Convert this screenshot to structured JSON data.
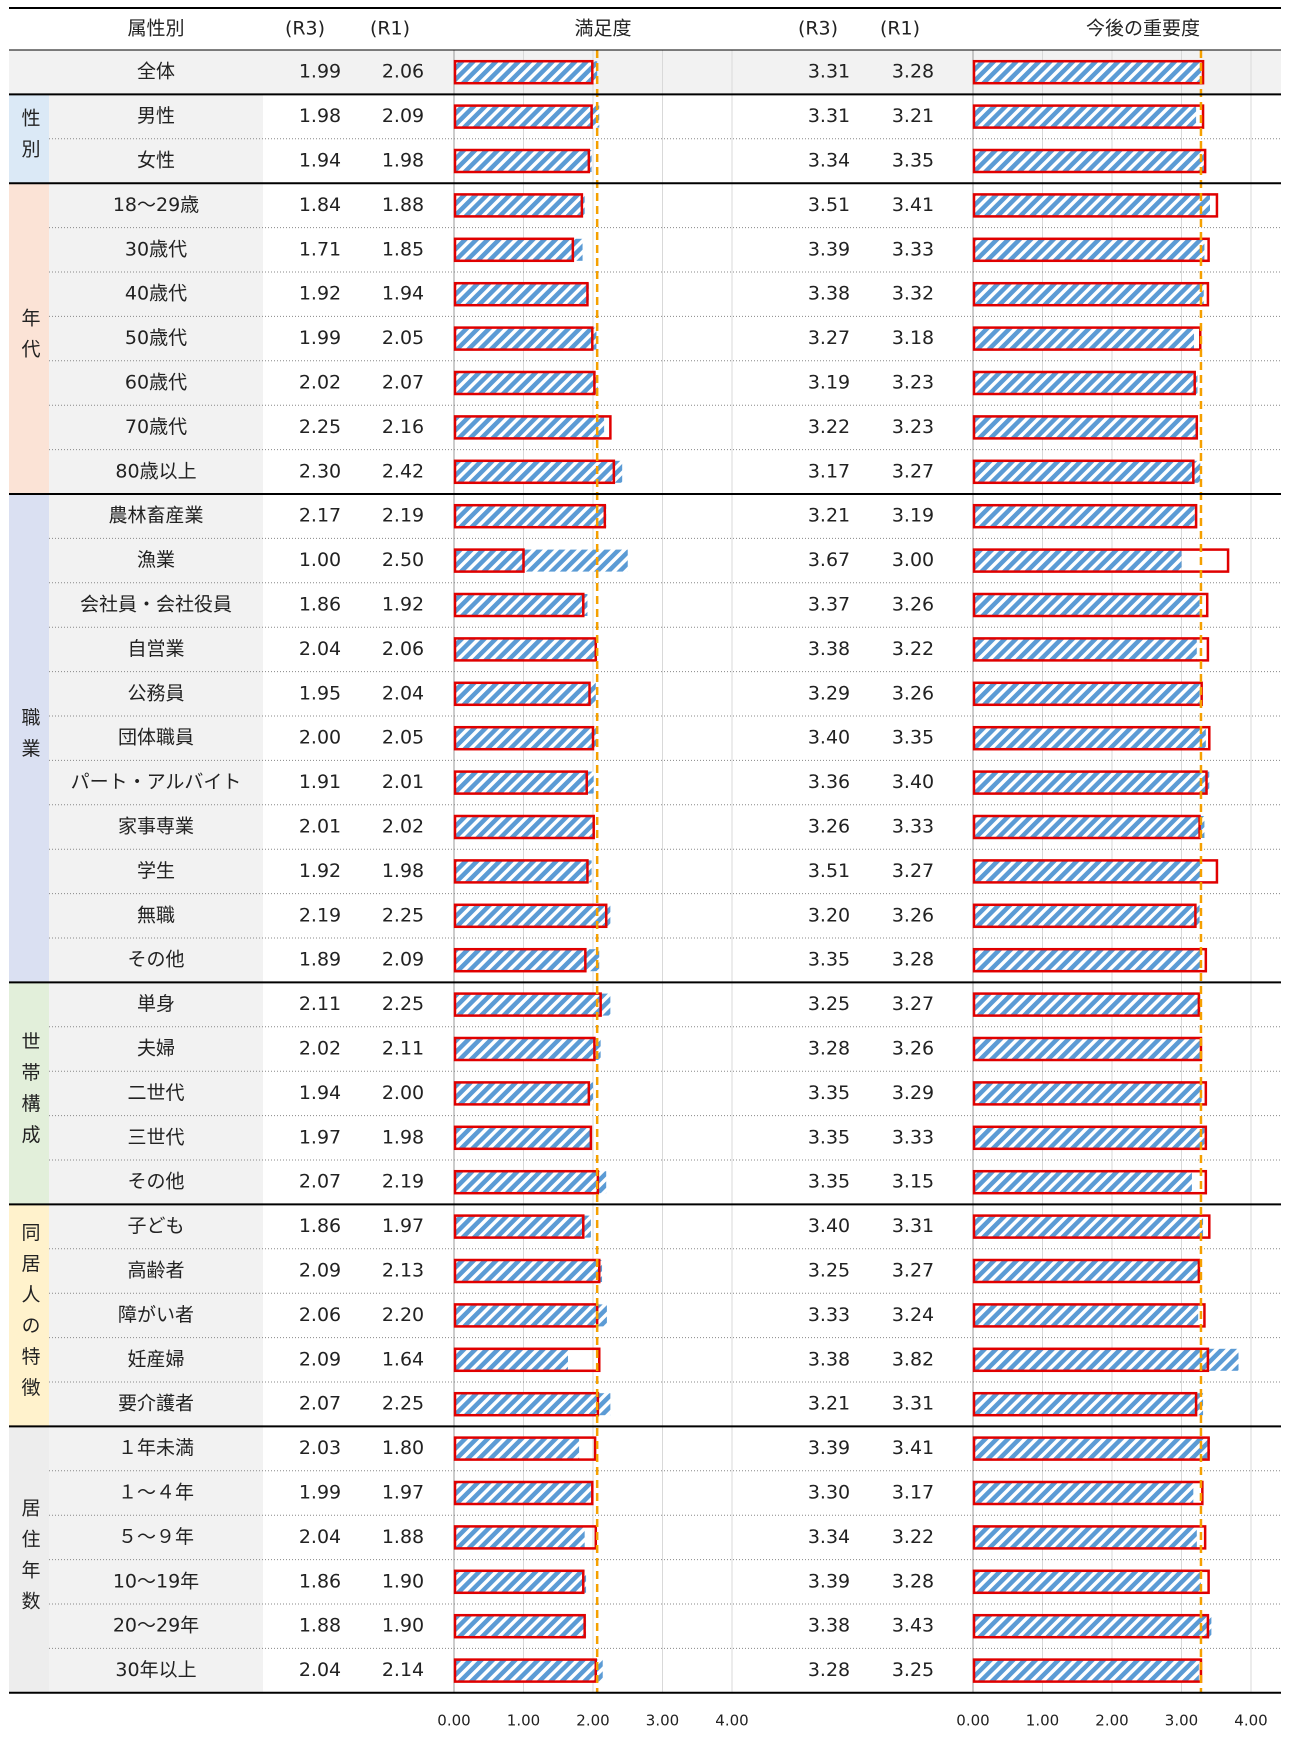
{
  "header": {
    "attribute": "属性別",
    "r3": "(R3)",
    "r1": "(R1)",
    "satisfaction": "満足度",
    "importance": "今後の重要度"
  },
  "axis": {
    "xlim": [
      0,
      4
    ],
    "xticks": [
      {
        "value": 0,
        "label": "0.00"
      },
      {
        "value": 1,
        "label": "1.00"
      },
      {
        "value": 2,
        "label": "2.00"
      },
      {
        "value": 3,
        "label": "3.00"
      },
      {
        "value": 4,
        "label": "4.00"
      }
    ],
    "r3_color": "#e00000",
    "r1_color": "#5b9bd5",
    "reference_color": "#f5a000"
  },
  "overall": {
    "rows": [
      [
        "全体",
        "1.99",
        "2.06",
        "3.31",
        "3.28"
      ]
    ]
  },
  "groups": [
    {
      "name": "性別",
      "color": "#dbe9f6",
      "rows": [
        [
          "男性",
          "1.98",
          "2.09",
          "3.31",
          "3.21"
        ],
        [
          "女性",
          "1.94",
          "1.98",
          "3.34",
          "3.35"
        ]
      ]
    },
    {
      "name": "年代",
      "color": "#fbe3d6",
      "rows": [
        [
          "18～29歳",
          "1.84",
          "1.88",
          "3.51",
          "3.41"
        ],
        [
          "30歳代",
          "1.71",
          "1.85",
          "3.39",
          "3.33"
        ],
        [
          "40歳代",
          "1.92",
          "1.94",
          "3.38",
          "3.32"
        ],
        [
          "50歳代",
          "1.99",
          "2.05",
          "3.27",
          "3.18"
        ],
        [
          "60歳代",
          "2.02",
          "2.07",
          "3.19",
          "3.23"
        ],
        [
          "70歳代",
          "2.25",
          "2.16",
          "3.22",
          "3.23"
        ],
        [
          "80歳以上",
          "2.30",
          "2.42",
          "3.17",
          "3.27"
        ]
      ]
    },
    {
      "name": "職業",
      "color": "#dae0f2",
      "rows": [
        [
          "農林畜産業",
          "2.17",
          "2.19",
          "3.21",
          "3.19"
        ],
        [
          "漁業",
          "1.00",
          "2.50",
          "3.67",
          "3.00"
        ],
        [
          "会社員・会社役員",
          "1.86",
          "1.92",
          "3.37",
          "3.26"
        ],
        [
          "自営業",
          "2.04",
          "2.06",
          "3.38",
          "3.22"
        ],
        [
          "公務員",
          "1.95",
          "2.04",
          "3.29",
          "3.26"
        ],
        [
          "団体職員",
          "2.00",
          "2.05",
          "3.40",
          "3.35"
        ],
        [
          "パート・アルバイト",
          "1.91",
          "2.01",
          "3.36",
          "3.40"
        ],
        [
          "家事専業",
          "2.01",
          "2.02",
          "3.26",
          "3.33"
        ],
        [
          "学生",
          "1.92",
          "1.98",
          "3.51",
          "3.27"
        ],
        [
          "無職",
          "2.19",
          "2.25",
          "3.20",
          "3.26"
        ],
        [
          "その他",
          "1.89",
          "2.09",
          "3.35",
          "3.28"
        ]
      ]
    },
    {
      "name": "世帯構成",
      "color": "#e2efda",
      "rows": [
        [
          "単身",
          "2.11",
          "2.25",
          "3.25",
          "3.27"
        ],
        [
          "夫婦",
          "2.02",
          "2.11",
          "3.28",
          "3.26"
        ],
        [
          "二世代",
          "1.94",
          "2.00",
          "3.35",
          "3.29"
        ],
        [
          "三世代",
          "1.97",
          "1.98",
          "3.35",
          "3.33"
        ],
        [
          "その他",
          "2.07",
          "2.19",
          "3.35",
          "3.15"
        ]
      ]
    },
    {
      "name": "同居人の特徴",
      "color": "#fff2cc",
      "rows": [
        [
          "子ども",
          "1.86",
          "1.97",
          "3.40",
          "3.31"
        ],
        [
          "高齢者",
          "2.09",
          "2.13",
          "3.25",
          "3.27"
        ],
        [
          "障がい者",
          "2.06",
          "2.20",
          "3.33",
          "3.24"
        ],
        [
          "妊産婦",
          "2.09",
          "1.64",
          "3.38",
          "3.82"
        ],
        [
          "要介護者",
          "2.07",
          "2.25",
          "3.21",
          "3.31"
        ]
      ]
    },
    {
      "name": "居住年数",
      "color": "#ededed",
      "rows": [
        [
          "１年未満",
          "2.03",
          "1.80",
          "3.39",
          "3.41"
        ],
        [
          "１～４年",
          "1.99",
          "1.97",
          "3.30",
          "3.17"
        ],
        [
          "５～９年",
          "2.04",
          "1.88",
          "3.34",
          "3.22"
        ],
        [
          "10～19年",
          "1.86",
          "1.90",
          "3.39",
          "3.28"
        ],
        [
          "20～29年",
          "1.88",
          "1.90",
          "3.38",
          "3.43"
        ],
        [
          "30年以上",
          "2.04",
          "2.14",
          "3.28",
          "3.25"
        ]
      ]
    }
  ]
}
